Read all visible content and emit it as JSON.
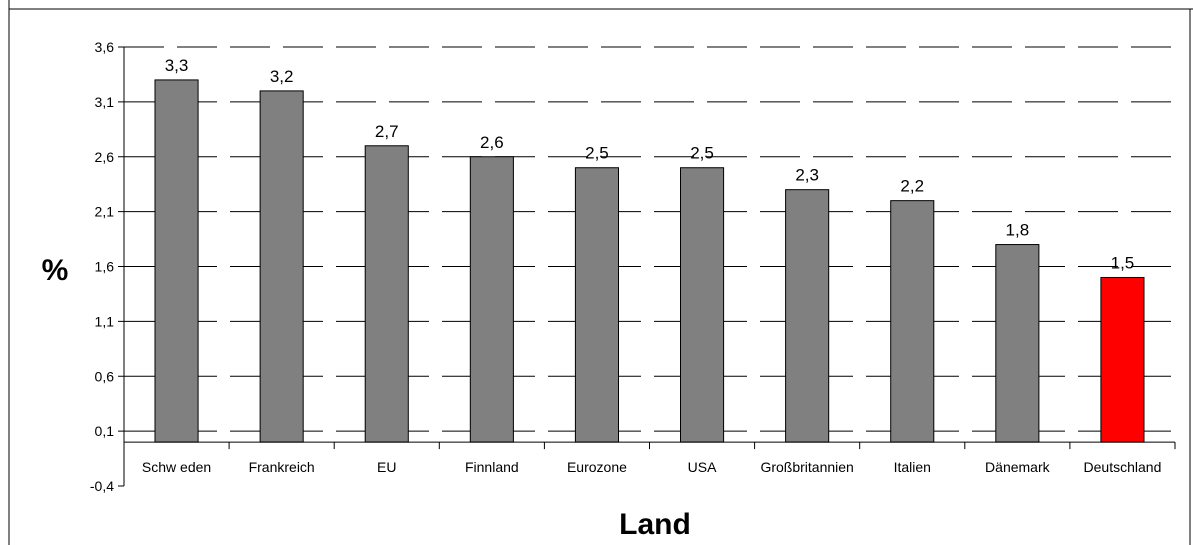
{
  "chart_data": {
    "type": "bar",
    "title": "",
    "xlabel": "Land",
    "ylabel": "%",
    "categories": [
      "Schw eden",
      "Frankreich",
      "EU",
      "Finnland",
      "Eurozone",
      "USA",
      "Großbritannien",
      "Italien",
      "Dänemark",
      "Deutschland"
    ],
    "values": [
      3.3,
      3.2,
      2.7,
      2.6,
      2.5,
      2.5,
      2.3,
      2.2,
      1.8,
      1.5
    ],
    "data_labels": [
      "3,3",
      "3,2",
      "2,7",
      "2,6",
      "2,5",
      "2,5",
      "2,3",
      "2,2",
      "1,8",
      "1,5"
    ],
    "ylim": [
      -0.4,
      3.6
    ],
    "yticks": [
      -0.4,
      0.1,
      0.6,
      1.1,
      1.6,
      2.1,
      2.6,
      3.1,
      3.6
    ],
    "ytick_labels": [
      "-0,4",
      "0,1",
      "0,6",
      "1,1",
      "1,6",
      "2,1",
      "2,6",
      "3,1",
      "3,6"
    ],
    "grid": true,
    "legend": "none",
    "colors": {
      "bar_default": "#808080",
      "bar_highlight": "#ff0000",
      "highlight_category": "Deutschland",
      "grid": "#000000",
      "axis": "#000000"
    }
  }
}
